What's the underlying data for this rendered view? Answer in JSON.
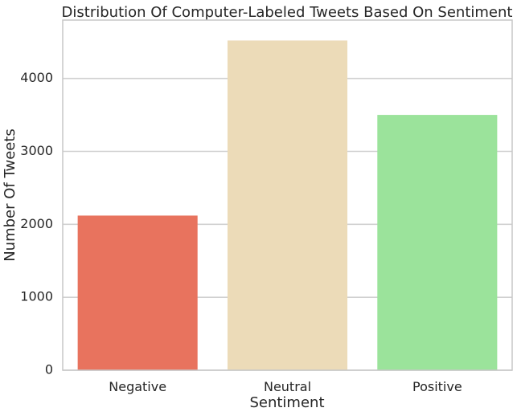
{
  "chart_data": {
    "type": "bar",
    "title": "Distribution Of Computer-Labeled Tweets Based On Sentiment",
    "xlabel": "Sentiment",
    "ylabel": "Number Of Tweets",
    "categories": [
      "Negative",
      "Neutral",
      "Positive"
    ],
    "values": [
      2120,
      4520,
      3500
    ],
    "colors": [
      "#e8735e",
      "#ecdbb8",
      "#9be39b"
    ],
    "ylim": [
      0,
      4800
    ],
    "yticks": [
      "0",
      "1000",
      "2000",
      "3000",
      "4000"
    ],
    "grid": "y-major",
    "legend": "none"
  }
}
